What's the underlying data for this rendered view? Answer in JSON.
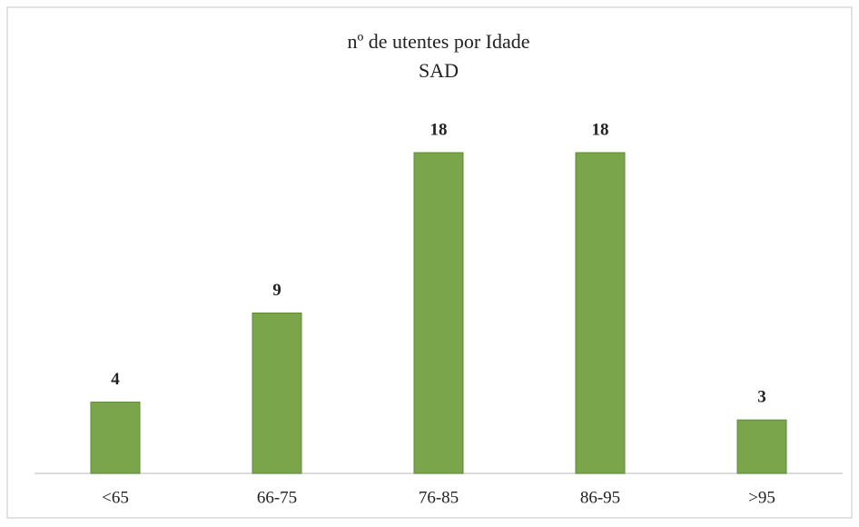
{
  "chart_data": {
    "type": "bar",
    "title": "nº de utentes por Idade",
    "subtitle": "SAD",
    "categories": [
      "<65",
      "66-75",
      "76-85",
      "86-95",
      ">95"
    ],
    "values": [
      4,
      9,
      18,
      18,
      3
    ],
    "color": "#7aa54b"
  }
}
